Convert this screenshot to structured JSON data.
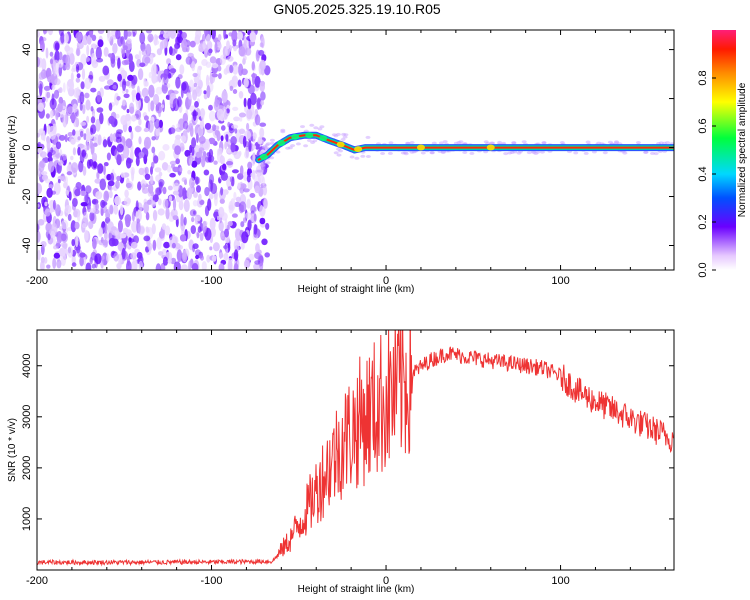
{
  "title": "GN05.2025.325.19.10.R05",
  "chart_data": [
    {
      "type": "heatmap",
      "xlabel": "Height of straight line (km)",
      "ylabel": "Frequency (Hz)",
      "xlim": [
        -200,
        165
      ],
      "ylim": [
        -50,
        48
      ],
      "xticks": [
        -200,
        -100,
        0,
        100
      ],
      "yticks": [
        -40,
        -20,
        0,
        20,
        40
      ],
      "noise_region_x": [
        -200,
        -68
      ],
      "trace": [
        {
          "x": -73,
          "y": -5
        },
        {
          "x": -68,
          "y": -3
        },
        {
          "x": -62,
          "y": 1
        },
        {
          "x": -55,
          "y": 4
        },
        {
          "x": -47,
          "y": 5
        },
        {
          "x": -40,
          "y": 5
        },
        {
          "x": -33,
          "y": 3
        },
        {
          "x": -25,
          "y": 1
        },
        {
          "x": -18,
          "y": -1
        },
        {
          "x": -12,
          "y": 0
        },
        {
          "x": 0,
          "y": 0
        },
        {
          "x": 50,
          "y": 0
        },
        {
          "x": 100,
          "y": 0
        },
        {
          "x": 165,
          "y": 0
        }
      ],
      "colorbar": {
        "label": "Normalized spectral amplitude",
        "range": [
          0,
          1
        ],
        "ticks": [
          0.0,
          0.2,
          0.4,
          0.6,
          0.8
        ]
      }
    },
    {
      "type": "line",
      "xlabel": "Height of straight line (km)",
      "ylabel": "SNR (10 * v/v)",
      "xlim": [
        -200,
        165
      ],
      "ylim": [
        0,
        4700
      ],
      "xticks": [
        -200,
        -100,
        0,
        100
      ],
      "yticks": [
        1000,
        2000,
        3000,
        4000
      ],
      "color": "#ee3333",
      "envelope": [
        {
          "x": -200,
          "y": 150
        },
        {
          "x": -150,
          "y": 150
        },
        {
          "x": -100,
          "y": 155
        },
        {
          "x": -65,
          "y": 170
        },
        {
          "x": -55,
          "y": 600
        },
        {
          "x": -45,
          "y": 1200
        },
        {
          "x": -35,
          "y": 1900
        },
        {
          "x": -25,
          "y": 2500
        },
        {
          "x": -15,
          "y": 2900
        },
        {
          "x": -5,
          "y": 3200
        },
        {
          "x": 5,
          "y": 3500
        },
        {
          "x": 15,
          "y": 3850
        },
        {
          "x": 25,
          "y": 4100
        },
        {
          "x": 35,
          "y": 4250
        },
        {
          "x": 50,
          "y": 4150
        },
        {
          "x": 70,
          "y": 4050
        },
        {
          "x": 90,
          "y": 3950
        },
        {
          "x": 100,
          "y": 3800
        },
        {
          "x": 110,
          "y": 3500
        },
        {
          "x": 120,
          "y": 3300
        },
        {
          "x": 135,
          "y": 3050
        },
        {
          "x": 150,
          "y": 2800
        },
        {
          "x": 165,
          "y": 2550
        }
      ]
    }
  ]
}
